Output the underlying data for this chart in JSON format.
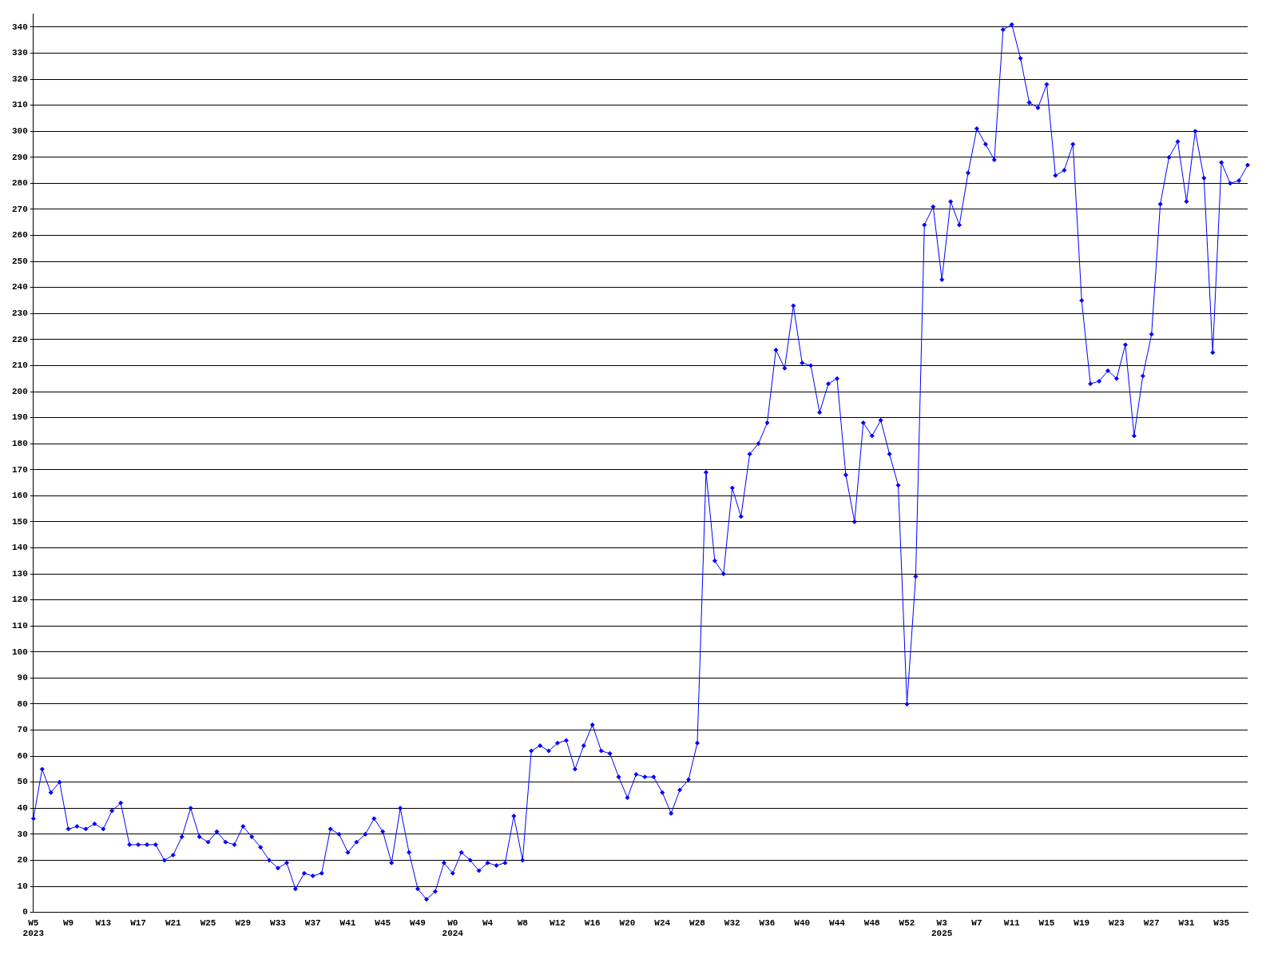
{
  "chart_data": {
    "type": "line",
    "categories": [
      "W5\n2023",
      null,
      null,
      null,
      "W9",
      null,
      null,
      null,
      "W13",
      null,
      null,
      null,
      "W17",
      null,
      null,
      null,
      "W21",
      null,
      null,
      null,
      "W25",
      null,
      null,
      null,
      "W29",
      null,
      null,
      null,
      "W33",
      null,
      null,
      null,
      "W37",
      null,
      null,
      null,
      "W41",
      null,
      null,
      null,
      "W45",
      null,
      null,
      null,
      "W49",
      null,
      null,
      null,
      "W0\n2024",
      null,
      null,
      null,
      "W4",
      null,
      null,
      null,
      "W8",
      null,
      null,
      null,
      "W12",
      null,
      null,
      null,
      "W16",
      null,
      null,
      null,
      "W20",
      null,
      null,
      null,
      "W24",
      null,
      null,
      null,
      "W28",
      null,
      null,
      null,
      "W32",
      null,
      null,
      null,
      "W36",
      null,
      null,
      null,
      "W40",
      null,
      null,
      null,
      "W44",
      null,
      null,
      null,
      "W48",
      null,
      null,
      null,
      "W52",
      null,
      null,
      null,
      "W3\n2025",
      null,
      null,
      null,
      "W7",
      null,
      null,
      null,
      "W11",
      null,
      null,
      null,
      "W15",
      null,
      null,
      null,
      "W19",
      null,
      null,
      null,
      "W23",
      null,
      null,
      null,
      "W27",
      null,
      null,
      null,
      "W31",
      null,
      null,
      null,
      "W35",
      null,
      null,
      null
    ],
    "series": [
      {
        "color": "#0000ff",
        "values": [
          36,
          55,
          46,
          50,
          32,
          33,
          32,
          34,
          32,
          39,
          42,
          26,
          26,
          26,
          26,
          20,
          22,
          29,
          40,
          29,
          27,
          31,
          27,
          26,
          33,
          29,
          25,
          20,
          17,
          19,
          9,
          15,
          14,
          15,
          32,
          30,
          23,
          27,
          30,
          36,
          31,
          19,
          40,
          23,
          9,
          5,
          8,
          19,
          15,
          23,
          20,
          16,
          19,
          18,
          19,
          37,
          20,
          62,
          64,
          62,
          65,
          66,
          55,
          64,
          72,
          62,
          61,
          52,
          44,
          53,
          52,
          52,
          46,
          38,
          47,
          51,
          65,
          169,
          135,
          130,
          163,
          152,
          176,
          180,
          188,
          216,
          209,
          233,
          211,
          210,
          192,
          203,
          205,
          168,
          150,
          188,
          183,
          189,
          176,
          164,
          80,
          129,
          264,
          271,
          243,
          273,
          264,
          284,
          301,
          295,
          289,
          339,
          341,
          328,
          311,
          309,
          318,
          283,
          285,
          295,
          235,
          203,
          204,
          208,
          205,
          218,
          183,
          206,
          222,
          272,
          290,
          296,
          273,
          300,
          282,
          215,
          288,
          280,
          281,
          287
        ]
      }
    ],
    "ylim": [
      0,
      345
    ],
    "yticks": [
      0,
      10,
      20,
      30,
      40,
      50,
      60,
      70,
      80,
      90,
      100,
      110,
      120,
      130,
      140,
      150,
      160,
      170,
      180,
      190,
      200,
      210,
      220,
      230,
      240,
      250,
      260,
      270,
      280,
      290,
      300,
      310,
      320,
      330,
      340
    ],
    "grid": "y",
    "legend": false,
    "marker": "diamond",
    "line_style": "solid"
  }
}
